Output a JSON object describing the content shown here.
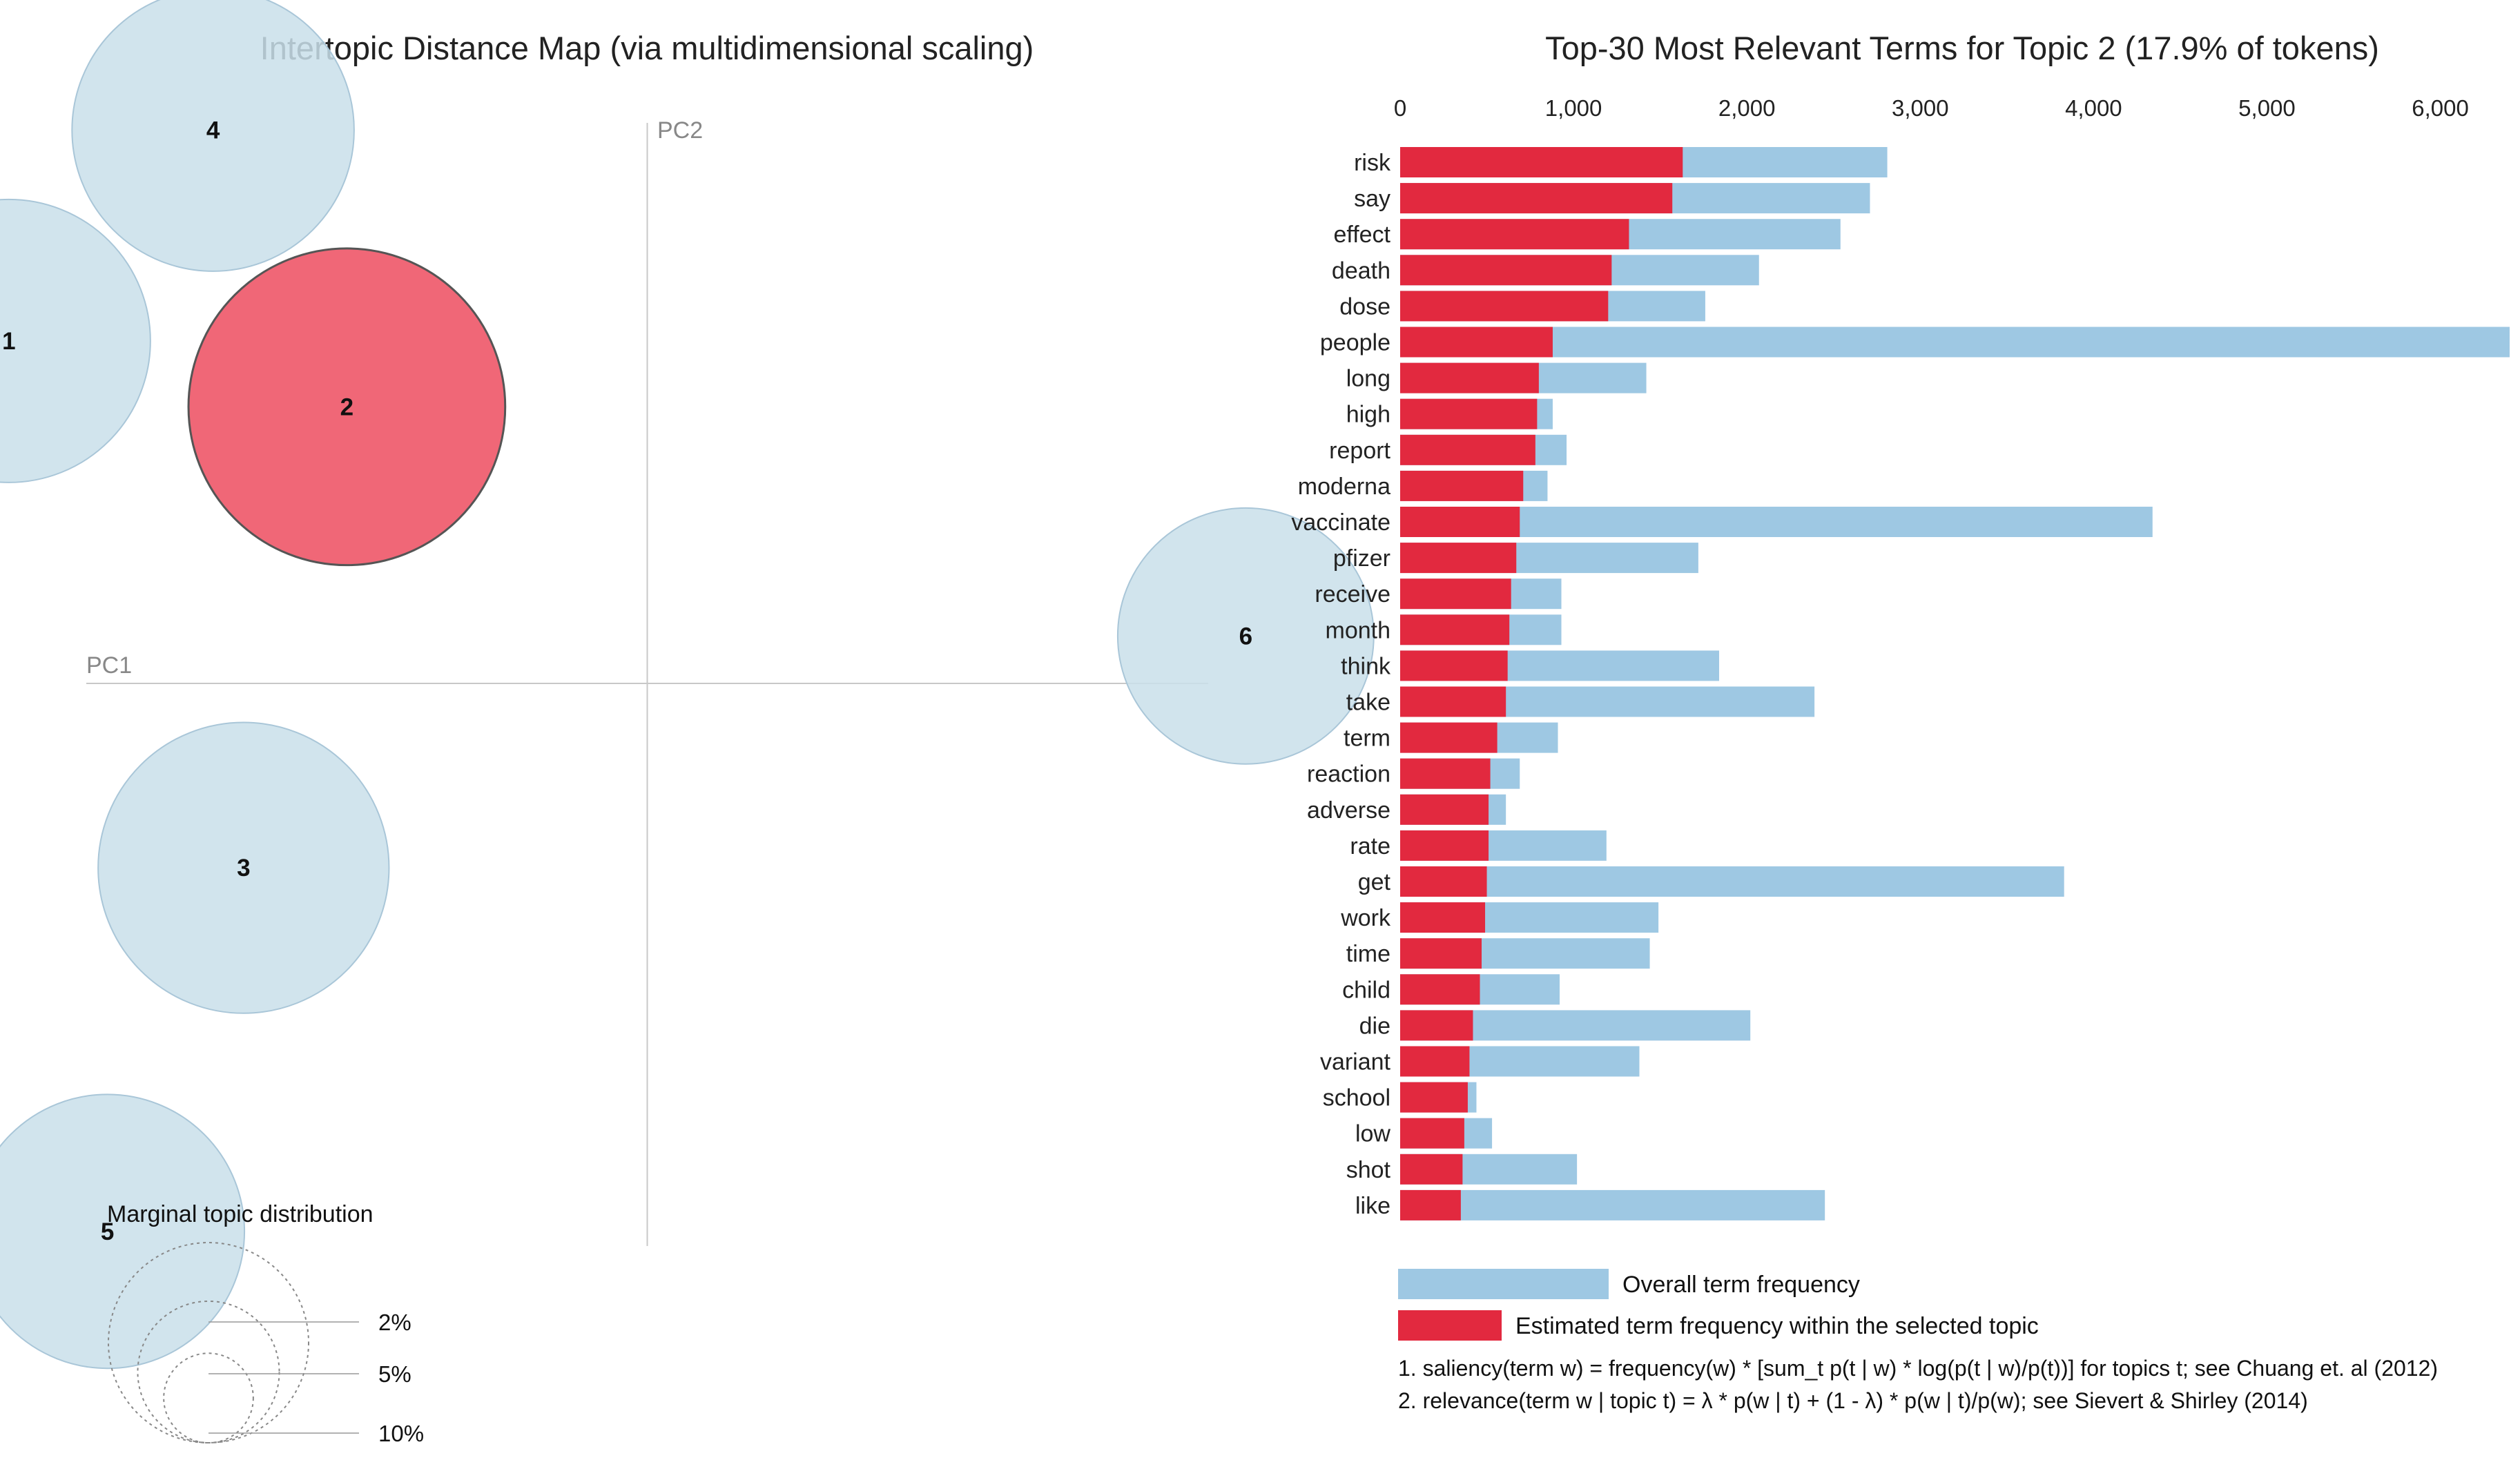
{
  "colors": {
    "overall": "#9ec8e3",
    "topic": "#e2293f",
    "circle_fill": "#c9dfea",
    "circle_stroke": "#a9c6d8",
    "selected_fill": "#ef5a6b",
    "selected_stroke": "#555555",
    "axis": "#c8c8c8"
  },
  "left_panel": {
    "title": "Intertopic Distance Map (via multidimensional scaling)",
    "pc1_label": "PC1",
    "pc2_label": "PC2",
    "marginal_title": "Marginal topic distribution",
    "size_legend": [
      "2%",
      "5%",
      "10%"
    ]
  },
  "right_panel": {
    "title": "Top-30 Most Relevant Terms for Topic 2 (17.9% of tokens)",
    "legend_overall": "Overall term frequency",
    "legend_topic": "Estimated term frequency within the selected topic",
    "note1": "1. saliency(term w) = frequency(w) * [sum_t p(t | w) * log(p(t | w)/p(t))] for topics t; see Chuang et. al (2012)",
    "note2": "2. relevance(term w | topic t) = λ * p(w | t) + (1 - λ) * p(w | t)/p(w); see Sievert & Shirley (2014)"
  },
  "chart_data": [
    {
      "type": "scatter",
      "title": "Intertopic Distance Map (via multidimensional scaling)",
      "xlabel": "PC1",
      "ylabel": "PC2",
      "xlim": [
        -0.3,
        0.3
      ],
      "ylim": [
        -0.3,
        0.3
      ],
      "selected_topic": "2",
      "topics": [
        {
          "id": "1",
          "x": -0.272,
          "y": 0.13,
          "share_pct": 14.3
        },
        {
          "id": "2",
          "x": -0.128,
          "y": 0.105,
          "share_pct": 17.9
        },
        {
          "id": "3",
          "x": -0.172,
          "y": -0.07,
          "share_pct": 15.1
        },
        {
          "id": "4",
          "x": -0.185,
          "y": 0.21,
          "share_pct": 14.2
        },
        {
          "id": "5",
          "x": -0.23,
          "y": -0.208,
          "share_pct": 13.4
        },
        {
          "id": "6",
          "x": 0.255,
          "y": 0.018,
          "share_pct": 11.7
        }
      ]
    },
    {
      "type": "bar",
      "title": "Top-30 Most Relevant Terms for Topic 2 (17.9% of tokens)",
      "orientation": "horizontal",
      "xlim": [
        0,
        6400
      ],
      "xticks": [
        0,
        1000,
        2000,
        3000,
        4000,
        5000,
        6000
      ],
      "xtick_labels": [
        "0",
        "1,000",
        "2,000",
        "3,000",
        "4,000",
        "5,000",
        "6,000"
      ],
      "categories": [
        "risk",
        "say",
        "effect",
        "death",
        "dose",
        "people",
        "long",
        "high",
        "report",
        "moderna",
        "vaccinate",
        "pfizer",
        "receive",
        "month",
        "think",
        "take",
        "term",
        "reaction",
        "adverse",
        "rate",
        "get",
        "work",
        "time",
        "child",
        "die",
        "variant",
        "school",
        "low",
        "shot",
        "like"
      ],
      "series": [
        {
          "name": "Overall term frequency",
          "values": [
            2810,
            2710,
            2540,
            2070,
            1760,
            6400,
            1420,
            880,
            960,
            850,
            4340,
            1720,
            930,
            930,
            1840,
            2390,
            910,
            690,
            610,
            1190,
            3830,
            1490,
            1440,
            920,
            2020,
            1380,
            440,
            530,
            1020,
            2450
          ]
        },
        {
          "name": "Estimated term frequency within the selected topic",
          "values": [
            1630,
            1570,
            1320,
            1220,
            1200,
            880,
            800,
            790,
            780,
            710,
            690,
            670,
            640,
            630,
            620,
            610,
            560,
            520,
            510,
            510,
            500,
            490,
            470,
            460,
            420,
            400,
            390,
            370,
            360,
            350
          ]
        }
      ]
    }
  ]
}
